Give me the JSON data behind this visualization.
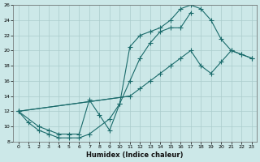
{
  "xlabel": "Humidex (Indice chaleur)",
  "bg_color": "#cce8e8",
  "grid_color": "#aacccc",
  "line_color": "#1a6b6b",
  "marker": "+",
  "markersize": 4,
  "linewidth": 0.8,
  "xlim": [
    -0.5,
    23.5
  ],
  "ylim": [
    8,
    26
  ],
  "xticks": [
    0,
    1,
    2,
    3,
    4,
    5,
    6,
    7,
    8,
    9,
    10,
    11,
    12,
    13,
    14,
    15,
    16,
    17,
    18,
    19,
    20,
    21,
    22,
    23
  ],
  "yticks": [
    8,
    10,
    12,
    14,
    16,
    18,
    20,
    22,
    24,
    26
  ],
  "curve1_x": [
    0,
    1,
    2,
    3,
    4,
    5,
    6,
    7,
    9,
    10,
    11,
    12,
    13,
    14,
    15,
    16,
    17
  ],
  "curve1_y": [
    12,
    10.5,
    9.5,
    9,
    8.5,
    8.5,
    8.5,
    9,
    11,
    13,
    16,
    19,
    21,
    22.5,
    23,
    23,
    25
  ],
  "curve2_x": [
    0,
    2,
    3,
    4,
    5,
    6,
    7,
    8,
    9,
    10,
    11,
    12,
    13,
    14,
    15,
    16,
    17,
    18,
    19,
    20,
    21,
    22,
    23
  ],
  "curve2_y": [
    12,
    10,
    9.5,
    9,
    9,
    9,
    13.5,
    11.5,
    9.5,
    13,
    20.5,
    22,
    22.5,
    23,
    24,
    25.5,
    26,
    25.5,
    24,
    21.5,
    20,
    19.5,
    19
  ],
  "curve3_x": [
    0,
    11,
    12,
    13,
    14,
    15,
    16,
    17,
    18,
    19,
    20,
    21,
    22,
    23
  ],
  "curve3_y": [
    12,
    14,
    15,
    16,
    17,
    18,
    19,
    20,
    18,
    17,
    18.5,
    20,
    19.5,
    19
  ]
}
